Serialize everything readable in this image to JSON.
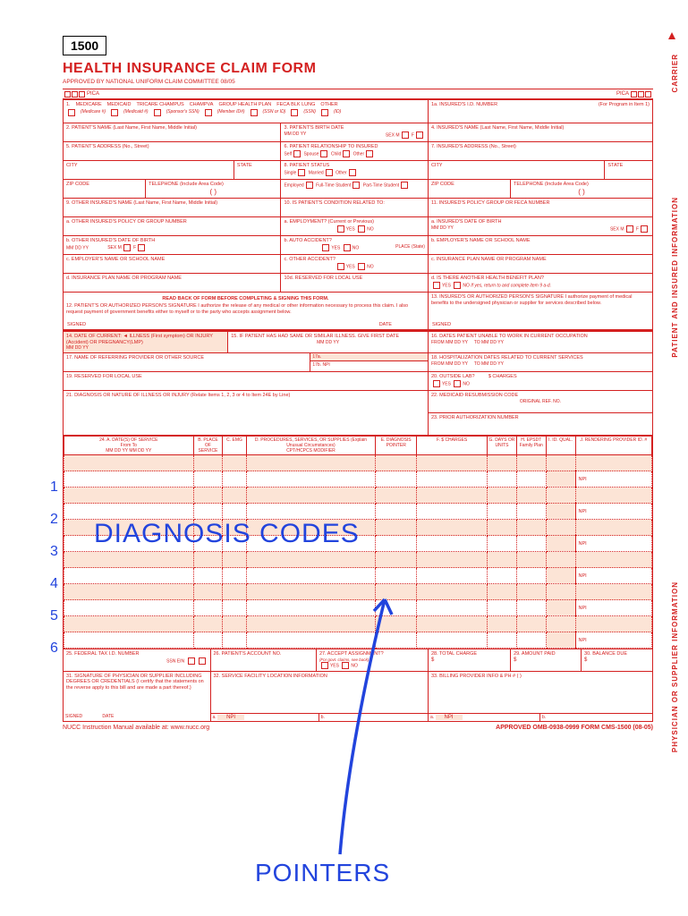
{
  "form_number": "1500",
  "title": "HEALTH INSURANCE CLAIM FORM",
  "subtitle": "APPROVED BY NATIONAL UNIFORM CLAIM COMMITTEE 08/05",
  "pica": "PICA",
  "annotations": {
    "diagnosis": "DIAGNOSIS CODES",
    "pointers": "POINTERS",
    "color": "#2244dd"
  },
  "side_labels": {
    "carrier": "CARRIER",
    "patient": "PATIENT AND INSURED INFORMATION",
    "physician": "PHYSICIAN OR SUPPLIER INFORMATION"
  },
  "row1": {
    "options": [
      "MEDICARE",
      "MEDICAID",
      "TRICARE CHAMPUS",
      "CHAMPVA",
      "GROUP HEALTH PLAN",
      "FECA BLK LUNG",
      "OTHER"
    ],
    "sublabels": [
      "(Medicare #)",
      "(Medicaid #)",
      "(Sponsor's SSN)",
      "(Member ID#)",
      "(SSN or ID)",
      "(SSN)",
      "(ID)"
    ],
    "r1a": "1a. INSURED'S I.D. NUMBER",
    "r1a_sub": "(For Program in Item 1)"
  },
  "fields": {
    "f2": "2. PATIENT'S NAME (Last Name, First Name, Middle Initial)",
    "f3": "3. PATIENT'S BIRTH DATE",
    "f3_sex": "SEX",
    "f3_dates": "MM    DD    YY",
    "f4": "4. INSURED'S NAME (Last Name, First Name, Middle Initial)",
    "f5": "5. PATIENT'S ADDRESS (No., Street)",
    "f6": "6. PATIENT RELATIONSHIP TO INSURED",
    "f6_opts": [
      "Self",
      "Spouse",
      "Child",
      "Other"
    ],
    "f7": "7. INSURED'S ADDRESS (No., Street)",
    "city": "CITY",
    "state": "STATE",
    "f8": "8. PATIENT STATUS",
    "f8_opts1": [
      "Single",
      "Married",
      "Other"
    ],
    "f8_opts2": [
      "Employed",
      "Full-Time Student",
      "Part-Time Student"
    ],
    "zip": "ZIP CODE",
    "phone": "TELEPHONE (Include Area Code)",
    "phone_paren": "(          )",
    "f9": "9. OTHER INSURED'S NAME (Last Name, First Name, Middle Initial)",
    "f9a": "a. OTHER INSURED'S POLICY OR GROUP NUMBER",
    "f9b": "b. OTHER INSURED'S DATE OF BIRTH",
    "f9c": "c. EMPLOYER'S NAME OR SCHOOL NAME",
    "f9d": "d. INSURANCE PLAN NAME OR PROGRAM NAME",
    "f10": "10. IS PATIENT'S CONDITION RELATED TO:",
    "f10a": "a. EMPLOYMENT? (Current or Previous)",
    "f10b": "b. AUTO ACCIDENT?",
    "f10b_place": "PLACE (State)",
    "f10c": "c. OTHER ACCIDENT?",
    "f10d": "10d. RESERVED FOR LOCAL USE",
    "yes": "YES",
    "no": "NO",
    "f11": "11. INSURED'S POLICY GROUP OR FECA NUMBER",
    "f11a": "a. INSURED'S DATE OF BIRTH",
    "f11b": "b. EMPLOYER'S NAME OR SCHOOL NAME",
    "f11c": "c. INSURANCE PLAN NAME OR PROGRAM NAME",
    "f11d": "d. IS THERE ANOTHER HEALTH BENEFIT PLAN?",
    "f11d_note": "If yes, return to and complete item 9 a-d.",
    "read_back": "READ BACK OF FORM BEFORE COMPLETING & SIGNING THIS FORM.",
    "f12": "12. PATIENT'S OR AUTHORIZED PERSON'S SIGNATURE  I authorize the release of any medical or other information necessary to process this claim. I also request payment of government benefits either to myself or to the party who accepts assignment below.",
    "f13": "13. INSURED'S OR AUTHORIZED PERSON'S SIGNATURE I authorize payment of medical benefits to the undersigned physician or supplier for services described below.",
    "signed": "SIGNED",
    "date": "DATE",
    "f14": "14. DATE OF CURRENT:",
    "f14_sub": "ILLNESS (First symptom) OR INJURY (Accident) OR PREGNANCY(LMP)",
    "f15": "15. IF PATIENT HAS HAD SAME OR SIMILAR ILLNESS. GIVE FIRST DATE",
    "f16": "16. DATES PATIENT UNABLE TO WORK IN CURRENT OCCUPATION",
    "from": "FROM",
    "to": "TO",
    "f17": "17. NAME OF REFERRING PROVIDER OR OTHER SOURCE",
    "f17a": "17a.",
    "f17b": "17b. NPI",
    "f18": "18. HOSPITALIZATION DATES RELATED TO CURRENT SERVICES",
    "f19": "19. RESERVED FOR LOCAL USE",
    "f20": "20. OUTSIDE LAB?",
    "f20_charges": "$ CHARGES",
    "f21": "21. DIAGNOSIS OR NATURE OF ILLNESS OR INJURY (Relate Items 1, 2, 3 or 4 to Item 24E by Line)",
    "f22": "22. MEDICAID RESUBMISSION CODE",
    "f22_ref": "ORIGINAL REF. NO.",
    "f23": "23. PRIOR AUTHORIZATION NUMBER",
    "f24_headers": {
      "a": "24. A.    DATE(S) OF SERVICE",
      "a_sub": "From            To",
      "a_dates": "MM   DD   YY    MM   DD   YY",
      "b": "B. PLACE OF SERVICE",
      "c": "C. EMG",
      "d": "D. PROCEDURES, SERVICES, OR SUPPLIES (Explain Unusual Circumstances)",
      "d_sub": "CPT/HCPCS          MODIFIER",
      "e": "E. DIAGNOSIS POINTER",
      "f": "F. $ CHARGES",
      "g": "G. DAYS OR UNITS",
      "h": "H. EPSDT Family Plan",
      "i": "I. ID. QUAL.",
      "j": "J. RENDERING PROVIDER ID. #"
    },
    "npi": "NPI",
    "f25": "25. FEDERAL TAX I.D. NUMBER",
    "f25_sub": "SSN  EIN",
    "f26": "26. PATIENT'S ACCOUNT NO.",
    "f27": "27. ACCEPT ASSIGNMENT?",
    "f27_sub": "(For govt. claims, see back)",
    "f28": "28. TOTAL CHARGE",
    "f29": "29. AMOUNT PAID",
    "f30": "30. BALANCE DUE",
    "dollar": "$",
    "f31": "31. SIGNATURE OF PHYSICIAN OR SUPPLIER INCLUDING DEGREES OR CREDENTIALS (I certify that the statements on the reverse apply to this bill and are made a part thereof.)",
    "f32": "32. SERVICE FACILITY LOCATION INFORMATION",
    "f33": "33. BILLING PROVIDER INFO & PH #",
    "f33_paren": "(       )",
    "a": "a.",
    "b": "b."
  },
  "footer": {
    "left": "NUCC Instruction Manual available at: www.nucc.org",
    "right": "APPROVED OMB-0938-0999 FORM CMS-1500 (08-05)"
  },
  "colors": {
    "form_red": "#d42020",
    "shade": "#fce4d6",
    "annotation_blue": "#2244dd"
  },
  "service_rows": [
    1,
    2,
    3,
    4,
    5,
    6
  ]
}
